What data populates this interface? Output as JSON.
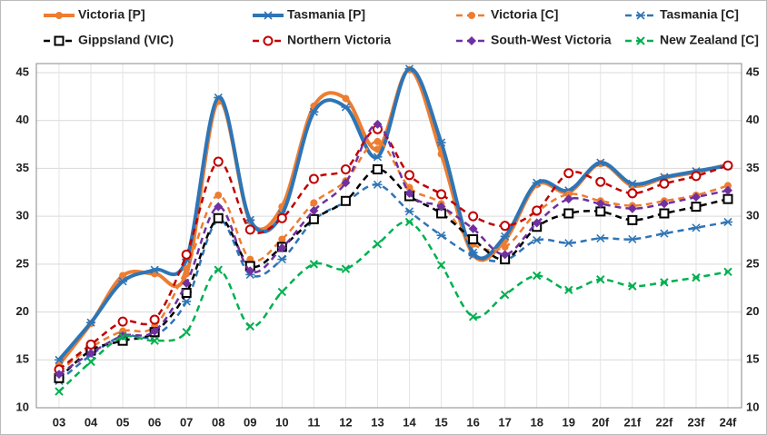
{
  "chart_data": {
    "type": "line",
    "categories": [
      "03",
      "04",
      "05",
      "06",
      "07",
      "08",
      "09",
      "10",
      "11",
      "12",
      "13",
      "14",
      "15",
      "16",
      "17",
      "18",
      "19",
      "20f",
      "21f",
      "22f",
      "23f",
      "24f"
    ],
    "ylim": [
      10,
      45
    ],
    "yticks": [
      10,
      15,
      20,
      25,
      30,
      35,
      40,
      45
    ],
    "grid": true,
    "series": [
      {
        "name": "Victoria [P]",
        "color": "#ed7d31",
        "dashed": false,
        "marker": "circle",
        "values": [
          14.5,
          18.8,
          23.8,
          24.0,
          24.0,
          42.0,
          29.5,
          31.0,
          41.5,
          42.3,
          37.0,
          45.3,
          36.5,
          26.0,
          27.5,
          33.3,
          32.5,
          35.5,
          33.2,
          34.0,
          34.6,
          35.4
        ]
      },
      {
        "name": "Tasmania [P]",
        "color": "#2e75b6",
        "dashed": false,
        "marker": "asterisk",
        "values": [
          15.0,
          18.9,
          23.2,
          24.4,
          25.5,
          42.4,
          29.6,
          30.2,
          40.9,
          41.4,
          36.2,
          45.4,
          37.7,
          26.2,
          27.9,
          33.5,
          32.7,
          35.6,
          33.4,
          34.1,
          34.7,
          35.3
        ]
      },
      {
        "name": "Victoria [C]",
        "color": "#ed7d31",
        "dashed": true,
        "marker": "circle",
        "values": [
          13.8,
          16.3,
          18.0,
          18.5,
          24.5,
          32.2,
          25.5,
          27.6,
          31.4,
          33.7,
          37.8,
          33.0,
          31.3,
          27.1,
          26.8,
          30.4,
          32.3,
          31.6,
          31.1,
          31.6,
          32.2,
          33.2
        ]
      },
      {
        "name": "Tasmania [C]",
        "color": "#2e75b6",
        "dashed": true,
        "marker": "asterisk",
        "values": [
          12.8,
          15.5,
          17.5,
          17.5,
          21.1,
          29.6,
          23.9,
          25.5,
          29.6,
          31.5,
          33.3,
          30.5,
          28.0,
          25.9,
          25.4,
          27.5,
          27.2,
          27.7,
          27.6,
          28.2,
          28.8,
          29.4
        ]
      },
      {
        "name": "Gippsland (VIC)",
        "color": "#000000",
        "dashed": true,
        "marker": "square",
        "values": [
          13.1,
          16.0,
          17.0,
          17.9,
          22.0,
          29.8,
          24.8,
          26.8,
          29.7,
          31.6,
          34.9,
          32.1,
          30.3,
          27.6,
          25.5,
          28.9,
          30.3,
          30.5,
          29.6,
          30.3,
          31.0,
          31.8
        ]
      },
      {
        "name": "Northern Victoria",
        "color": "#c00000",
        "dashed": true,
        "marker": "open-circle",
        "values": [
          14.0,
          16.6,
          19.0,
          19.2,
          26.0,
          35.7,
          28.6,
          29.8,
          33.9,
          34.9,
          39.1,
          34.3,
          32.3,
          30.0,
          29.0,
          30.6,
          34.5,
          33.6,
          32.4,
          33.4,
          34.2,
          35.3
        ]
      },
      {
        "name": "South-West Victoria",
        "color": "#7030a0",
        "dashed": true,
        "marker": "diamond",
        "values": [
          13.5,
          15.7,
          17.5,
          18.0,
          23.0,
          31.0,
          24.3,
          26.7,
          30.6,
          33.5,
          39.6,
          32.4,
          31.0,
          28.7,
          26.0,
          29.3,
          31.8,
          31.3,
          30.8,
          31.3,
          32.0,
          32.7
        ]
      },
      {
        "name": "New Zealand [C]",
        "color": "#00b050",
        "dashed": true,
        "marker": "x",
        "values": [
          11.7,
          14.8,
          17.4,
          17.0,
          17.9,
          24.4,
          18.5,
          22.1,
          25.0,
          24.5,
          27.1,
          29.4,
          24.9,
          19.5,
          21.8,
          23.8,
          22.3,
          23.4,
          22.7,
          23.1,
          23.6,
          24.2
        ]
      }
    ]
  }
}
